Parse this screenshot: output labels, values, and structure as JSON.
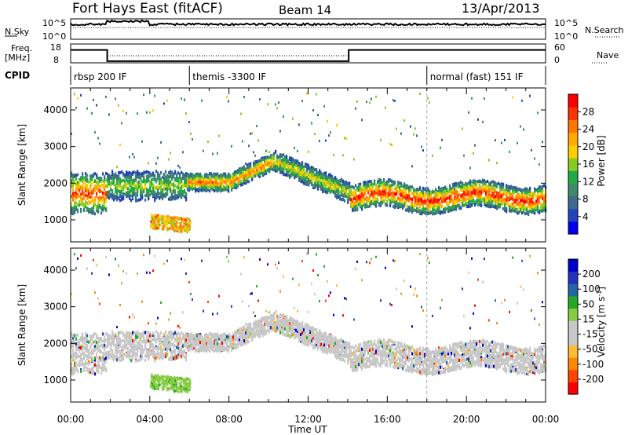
{
  "header": {
    "title": "Fort Hays East (fitACF)",
    "beam": "Beam 14",
    "date": "13/Apr/2013"
  },
  "top_panels": {
    "nsky_label": "N.Sky",
    "nsky_ticks": [
      "10^5",
      "10^0"
    ],
    "nsearch_label": "N.Search",
    "nsearch_ticks": [
      "10^5",
      "10^0"
    ],
    "freq_label": "Freq.",
    "freq_unit": "[MHz]",
    "freq_ticks": [
      "18",
      "8"
    ],
    "nave_label": "Nave",
    "nave_ticks": [
      "60",
      "0"
    ],
    "cpid_label": "CPID",
    "cpid_segments": [
      {
        "label": "rbsp 200 IF",
        "start_hour": 0
      },
      {
        "label": "themis -3300 IF",
        "start_hour": 6
      },
      {
        "label": "normal (fast) 151 IF",
        "start_hour": 18
      }
    ],
    "freq_steps": [
      {
        "from": 0,
        "to": 1.85,
        "mhz": 15
      },
      {
        "from": 1.85,
        "to": 14.05,
        "mhz": 8.5
      },
      {
        "from": 14.05,
        "to": 24,
        "mhz": 15
      }
    ]
  },
  "colors": {
    "power": [
      "#0000ee",
      "#2244bb",
      "#3a6a8e",
      "#3e8a66",
      "#22aa44",
      "#88cc22",
      "#ffcc00",
      "#ffaa00",
      "#ff7700",
      "#ff3300",
      "#ff0000"
    ],
    "velocity": [
      "#ff0000",
      "#ff4400",
      "#ff8800",
      "#ffbb33",
      "#c8c8c8",
      "#c8c8c8",
      "#88cc44",
      "#22aa22",
      "#2266aa",
      "#2233bb",
      "#0000cc"
    ]
  },
  "chart_data": [
    {
      "type": "heatmap",
      "name": "power",
      "xlabel": "",
      "ylabel": "Slant Range [km]",
      "yticks": [
        "1000",
        "2000",
        "3000",
        "4000"
      ],
      "ylim": [
        400,
        4600
      ],
      "xlim": [
        0,
        24
      ],
      "colorbar_label": "Power [dB]",
      "colorbar_ticks": [
        "28",
        "24",
        "20",
        "16",
        "12",
        "8",
        "4"
      ],
      "clim": [
        0,
        30
      ],
      "features": [
        {
          "from": 0.0,
          "to": 1.8,
          "center_km": 1700,
          "width_km": 700,
          "level": 24
        },
        {
          "from": 1.8,
          "to": 5.8,
          "center_km": 1900,
          "width_km": 500,
          "level": 14
        },
        {
          "from": 5.8,
          "to": 10.2,
          "center_km": 2000,
          "width_km": 300,
          "level": 22
        },
        {
          "from": 10.2,
          "to": 14.05,
          "center_km": 1900,
          "width_km": 350,
          "level": 16
        },
        {
          "from": 4.0,
          "to": 6.0,
          "center_km": 950,
          "width_km": 200,
          "level": 20
        },
        {
          "from": 14.05,
          "to": 24.0,
          "center_km": 1600,
          "width_km": 450,
          "level": 25
        }
      ]
    },
    {
      "type": "heatmap",
      "name": "velocity",
      "xlabel": "Time UT",
      "ylabel": "Slant Range [km]",
      "yticks": [
        "1000",
        "2000",
        "3000",
        "4000"
      ],
      "ylim": [
        400,
        4600
      ],
      "xlim": [
        0,
        24
      ],
      "xticks": [
        "00:00",
        "04:00",
        "08:00",
        "12:00",
        "16:00",
        "20:00",
        "00:00"
      ],
      "colorbar_label": "Velocity [m s",
      "colorbar_unit_exp": "-1",
      "colorbar_ticks": [
        "200",
        "100",
        "50",
        "15",
        "-15",
        "-50",
        "-100",
        "-200"
      ],
      "clim": [
        -250,
        250
      ]
    }
  ]
}
